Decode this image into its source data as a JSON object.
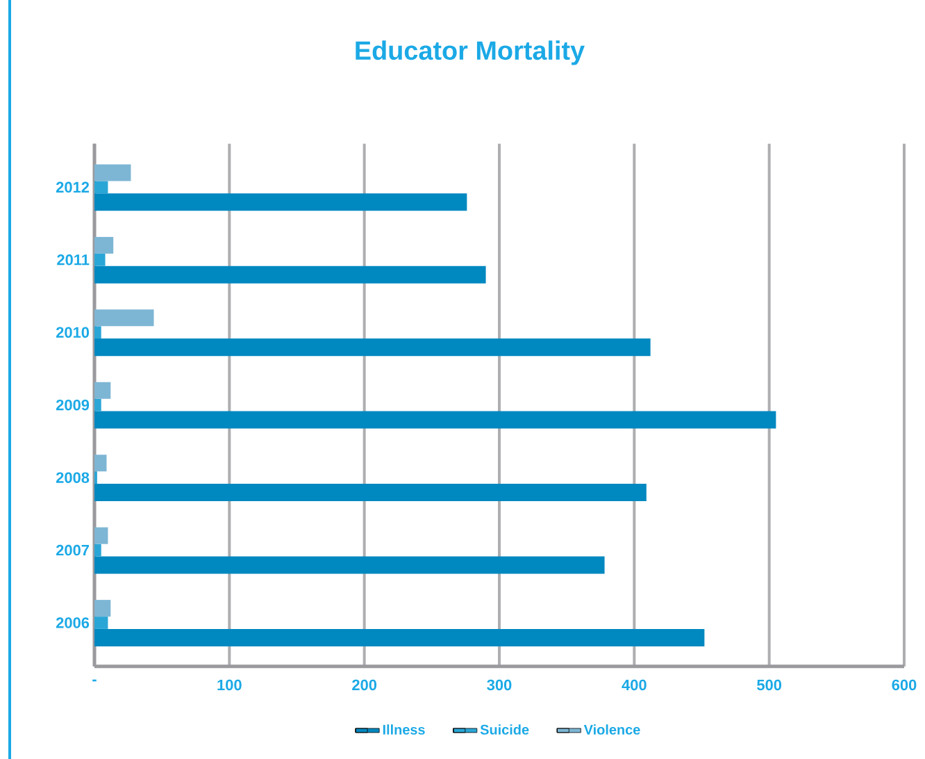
{
  "chart_data": {
    "type": "bar",
    "orientation": "horizontal",
    "title": "Educator Mortality",
    "categories": [
      "2012",
      "2011",
      "2010",
      "2009",
      "2008",
      "2007",
      "2006"
    ],
    "series": [
      {
        "name": "Illness",
        "color": "#0088c0",
        "values": [
          276,
          290,
          412,
          505,
          409,
          378,
          452
        ]
      },
      {
        "name": "Suicide",
        "color": "#2aa6d6",
        "values": [
          10,
          8,
          5,
          5,
          2,
          5,
          10
        ]
      },
      {
        "name": "Violence",
        "color": "#7db6d4",
        "values": [
          27,
          14,
          44,
          12,
          9,
          10,
          12
        ]
      }
    ],
    "xlim": [
      0,
      600
    ],
    "xticks": [
      {
        "value": 0,
        "label": "-"
      },
      100,
      200,
      300,
      400,
      500,
      600
    ],
    "grid": "x",
    "legend": "bottom"
  }
}
